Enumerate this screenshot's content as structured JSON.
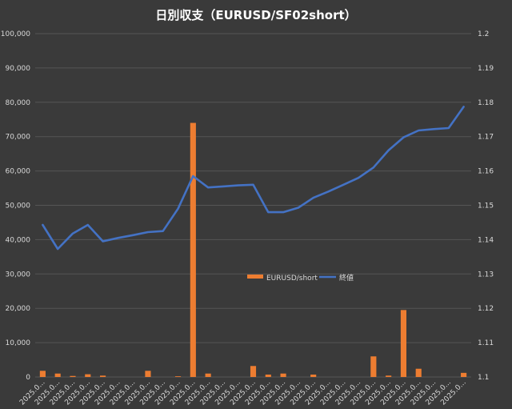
{
  "chart_data": {
    "type": "bar+line",
    "title": "日別収支（EURUSD/SF02short）",
    "x_tick_label": "2025.0...",
    "categories_count": 29,
    "y_left": {
      "ylim": [
        0,
        100000
      ],
      "ticks": [
        "0",
        "10,000",
        "20,000",
        "30,000",
        "40,000",
        "50,000",
        "60,000",
        "70,000",
        "80,000",
        "90,000",
        "100,000"
      ]
    },
    "y_right": {
      "ylim": [
        1.1,
        1.2
      ],
      "ticks": [
        "1.1",
        "1.11",
        "1.12",
        "1.13",
        "1.14",
        "1.15",
        "1.16",
        "1.17",
        "1.18",
        "1.19",
        "1.2"
      ]
    },
    "series": [
      {
        "name": "EURUSD/short",
        "kind": "bar",
        "axis": "left",
        "color": "#ed7d31",
        "values": [
          1800,
          1000,
          300,
          800,
          400,
          0,
          0,
          1800,
          0,
          200,
          74000,
          1000,
          0,
          0,
          3200,
          700,
          1000,
          0,
          700,
          0,
          0,
          0,
          6000,
          400,
          19500,
          2400,
          0,
          0,
          1200
        ]
      },
      {
        "name": "終値",
        "kind": "line",
        "axis": "right",
        "color": "#4472c4",
        "values": [
          1.1443,
          1.1373,
          1.1418,
          1.1443,
          1.1395,
          1.1405,
          1.1413,
          1.1422,
          1.1425,
          1.149,
          1.1585,
          1.1552,
          1.1555,
          1.1558,
          1.156,
          1.148,
          1.148,
          1.1493,
          1.1522,
          1.154,
          1.156,
          1.158,
          1.161,
          1.166,
          1.1698,
          1.1718,
          1.1722,
          1.1725,
          1.1787
        ]
      }
    ],
    "legend": {
      "position": "center",
      "entries": [
        "EURUSD/short",
        "終値"
      ]
    },
    "grid": true
  }
}
